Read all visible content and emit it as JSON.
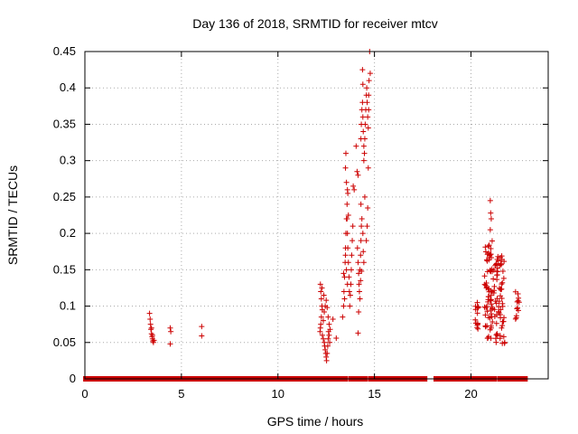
{
  "chart_data": {
    "type": "scatter",
    "title": "Day 136 of 2018, SRMTID for receiver mtcv",
    "xlabel": "GPS time / hours",
    "ylabel": "SRMTID / TECUs",
    "xlim": [
      0,
      24
    ],
    "ylim": [
      0,
      0.45
    ],
    "xticks": [
      0,
      5,
      10,
      15,
      20
    ],
    "xtick_labels": [
      "0",
      "5",
      "10",
      "15",
      "20"
    ],
    "yticks": [
      0,
      0.05,
      0.1,
      0.15,
      0.2,
      0.25,
      0.3,
      0.35,
      0.4,
      0.45
    ],
    "ytick_labels": [
      "0",
      "0.05",
      "0.1",
      "0.15",
      "0.2",
      "0.25",
      "0.3",
      "0.35",
      "0.4",
      "0.45"
    ],
    "grid": true,
    "marker": "+",
    "series_color": "#cc0000",
    "zero_segments": [
      [
        0.05,
        3.3
      ],
      [
        3.5,
        4.3
      ],
      [
        4.5,
        12.5
      ],
      [
        12.7,
        13.5
      ],
      [
        13.8,
        14.5
      ],
      [
        14.8,
        17.6
      ],
      [
        18.2,
        20.3
      ],
      [
        20.5,
        21.2
      ],
      [
        21.5,
        22.3
      ],
      [
        22.5,
        22.8
      ]
    ],
    "zero_step": 0.08,
    "points": [
      [
        3.35,
        0.09
      ],
      [
        3.38,
        0.082
      ],
      [
        3.4,
        0.075
      ],
      [
        3.42,
        0.068
      ],
      [
        3.45,
        0.062
      ],
      [
        3.48,
        0.058
      ],
      [
        3.5,
        0.055
      ],
      [
        3.52,
        0.052
      ],
      [
        3.55,
        0.05
      ],
      [
        3.58,
        0.053
      ],
      [
        3.45,
        0.07
      ],
      [
        3.5,
        0.06
      ],
      [
        4.42,
        0.07
      ],
      [
        4.45,
        0.065
      ],
      [
        4.42,
        0.048
      ],
      [
        6.05,
        0.072
      ],
      [
        6.05,
        0.059
      ],
      [
        12.2,
        0.13
      ],
      [
        12.22,
        0.12
      ],
      [
        12.25,
        0.11
      ],
      [
        12.28,
        0.1
      ],
      [
        12.3,
        0.095
      ],
      [
        12.25,
        0.085
      ],
      [
        12.22,
        0.075
      ],
      [
        12.2,
        0.07
      ],
      [
        12.18,
        0.065
      ],
      [
        12.3,
        0.06
      ],
      [
        12.35,
        0.055
      ],
      [
        12.4,
        0.05
      ],
      [
        12.42,
        0.045
      ],
      [
        12.45,
        0.04
      ],
      [
        12.48,
        0.035
      ],
      [
        12.5,
        0.03
      ],
      [
        12.52,
        0.025
      ],
      [
        12.55,
        0.035
      ],
      [
        12.58,
        0.045
      ],
      [
        12.6,
        0.055
      ],
      [
        12.62,
        0.065
      ],
      [
        12.65,
        0.06
      ],
      [
        12.68,
        0.05
      ],
      [
        12.35,
        0.08
      ],
      [
        12.4,
        0.092
      ],
      [
        12.45,
        0.1
      ],
      [
        12.5,
        0.108
      ],
      [
        12.55,
        0.098
      ],
      [
        12.6,
        0.085
      ],
      [
        12.65,
        0.075
      ],
      [
        12.7,
        0.068
      ],
      [
        12.38,
        0.115
      ],
      [
        12.28,
        0.125
      ],
      [
        12.85,
        0.082
      ],
      [
        13.02,
        0.056
      ],
      [
        13.35,
        0.085
      ],
      [
        13.4,
        0.1
      ],
      [
        13.42,
        0.12
      ],
      [
        13.45,
        0.14
      ],
      [
        13.48,
        0.16
      ],
      [
        13.5,
        0.18
      ],
      [
        13.52,
        0.2
      ],
      [
        13.55,
        0.22
      ],
      [
        13.58,
        0.24
      ],
      [
        13.6,
        0.26
      ],
      [
        13.62,
        0.255
      ],
      [
        13.5,
        0.29
      ],
      [
        13.52,
        0.31
      ],
      [
        13.55,
        0.27
      ],
      [
        13.58,
        0.22
      ],
      [
        13.6,
        0.2
      ],
      [
        13.62,
        0.18
      ],
      [
        13.65,
        0.16
      ],
      [
        13.68,
        0.14
      ],
      [
        13.7,
        0.12
      ],
      [
        13.72,
        0.1
      ],
      [
        13.75,
        0.115
      ],
      [
        13.78,
        0.13
      ],
      [
        13.8,
        0.15
      ],
      [
        13.82,
        0.17
      ],
      [
        13.85,
        0.19
      ],
      [
        13.88,
        0.21
      ],
      [
        13.5,
        0.17
      ],
      [
        13.55,
        0.15
      ],
      [
        13.6,
        0.13
      ],
      [
        13.45,
        0.11
      ],
      [
        13.4,
        0.145
      ],
      [
        13.65,
        0.225
      ],
      [
        13.9,
        0.265
      ],
      [
        13.95,
        0.26
      ],
      [
        14.05,
        0.32
      ],
      [
        14.1,
        0.285
      ],
      [
        14.15,
        0.28
      ],
      [
        14.12,
        0.18
      ],
      [
        14.15,
        0.16
      ],
      [
        14.18,
        0.145
      ],
      [
        14.2,
        0.13
      ],
      [
        14.22,
        0.12
      ],
      [
        14.25,
        0.11
      ],
      [
        14.18,
        0.092
      ],
      [
        14.15,
        0.063
      ],
      [
        14.25,
        0.15
      ],
      [
        14.28,
        0.17
      ],
      [
        14.3,
        0.19
      ],
      [
        14.32,
        0.21
      ],
      [
        14.3,
        0.24
      ],
      [
        14.35,
        0.22
      ],
      [
        14.4,
        0.2
      ],
      [
        14.42,
        0.175
      ],
      [
        14.45,
        0.16
      ],
      [
        14.28,
        0.135
      ],
      [
        14.33,
        0.148
      ],
      [
        14.3,
        0.33
      ],
      [
        14.32,
        0.35
      ],
      [
        14.35,
        0.37
      ],
      [
        14.38,
        0.38
      ],
      [
        14.4,
        0.36
      ],
      [
        14.42,
        0.34
      ],
      [
        14.45,
        0.32
      ],
      [
        14.48,
        0.31
      ],
      [
        14.5,
        0.33
      ],
      [
        14.52,
        0.35
      ],
      [
        14.55,
        0.37
      ],
      [
        14.58,
        0.39
      ],
      [
        14.6,
        0.4
      ],
      [
        14.62,
        0.38
      ],
      [
        14.65,
        0.36
      ],
      [
        14.68,
        0.345
      ],
      [
        14.7,
        0.39
      ],
      [
        14.72,
        0.41
      ],
      [
        14.75,
        0.45
      ],
      [
        14.78,
        0.42
      ],
      [
        14.68,
        0.29
      ],
      [
        14.65,
        0.235
      ],
      [
        14.62,
        0.21
      ],
      [
        14.58,
        0.19
      ],
      [
        14.5,
        0.25
      ],
      [
        14.45,
        0.3
      ],
      [
        14.4,
        0.405
      ],
      [
        14.38,
        0.425
      ],
      [
        14.7,
        0.37
      ]
    ],
    "clusters": [
      {
        "xmin": 20.2,
        "xmax": 20.4,
        "ymin": 0.06,
        "ymax": 0.105,
        "n": 14
      },
      {
        "xmin": 20.7,
        "xmax": 21.2,
        "ymin": 0.055,
        "ymax": 0.19,
        "n": 70
      },
      {
        "xmin": 21.2,
        "xmax": 21.75,
        "ymin": 0.045,
        "ymax": 0.17,
        "n": 60
      },
      {
        "xmin": 22.3,
        "xmax": 22.5,
        "ymin": 0.075,
        "ymax": 0.12,
        "n": 12
      }
    ],
    "extra_points": [
      [
        21.0,
        0.245
      ],
      [
        21.02,
        0.228
      ],
      [
        21.05,
        0.22
      ],
      [
        21.0,
        0.205
      ],
      [
        21.7,
        0.058
      ],
      [
        21.75,
        0.05
      ]
    ]
  }
}
